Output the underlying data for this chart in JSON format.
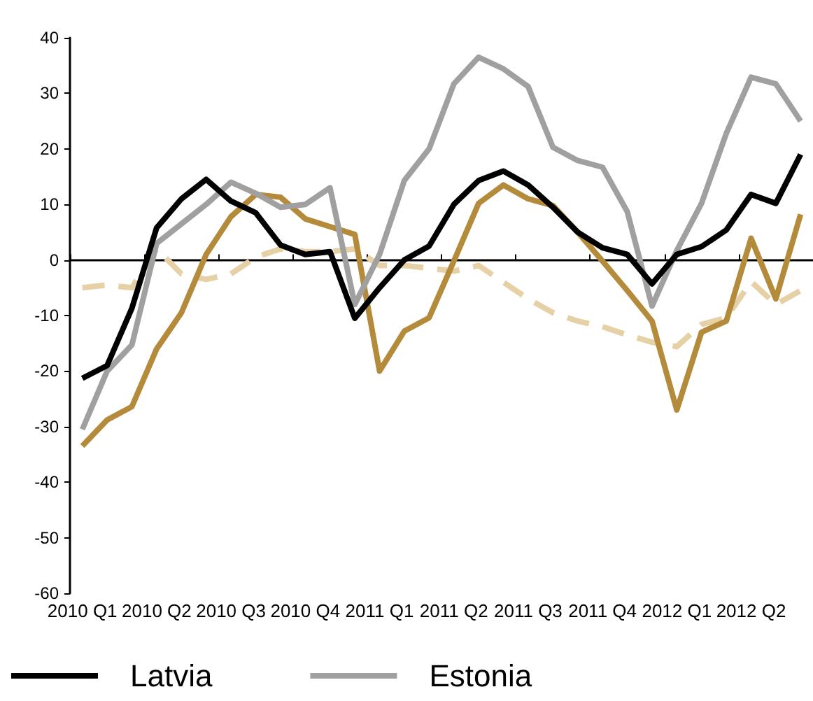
{
  "chart_data": {
    "type": "line",
    "categories": [
      "2010 Q1",
      null,
      null,
      "2010 Q2",
      null,
      null,
      "2010 Q3",
      null,
      null,
      "2010 Q4",
      null,
      null,
      "2011 Q1",
      null,
      null,
      "2011 Q2",
      null,
      null,
      "2011 Q3",
      null,
      null,
      "2011 Q4",
      null,
      null,
      "2012 Q1",
      null,
      null,
      "2012 Q2",
      null,
      null
    ],
    "series": [
      {
        "name": "Latvia",
        "color": "#000000",
        "line_style": "solid",
        "values": [
          -21.3,
          -19,
          -8.7,
          5.8,
          11,
          14.5,
          10.6,
          8.5,
          2.7,
          1,
          1.5,
          -10.5,
          -5,
          0,
          2.5,
          10,
          14.3,
          16,
          13.5,
          9.5,
          5,
          2.2,
          1,
          -4.3,
          1,
          2.4,
          5.4,
          11.8,
          10.2,
          19
        ]
      },
      {
        "name": "Estonia",
        "color": "#a0a0a0",
        "line_style": "solid",
        "values": [
          -30.5,
          -20,
          -15.3,
          3,
          6.5,
          10,
          14,
          12,
          9.5,
          10,
          13,
          -8,
          1,
          14.3,
          20,
          31.7,
          36.5,
          34.4,
          31.2,
          20.3,
          17.9,
          16.7,
          8.7,
          -8.3,
          1.7,
          10.2,
          22.8,
          32.9,
          31.7,
          25
        ]
      },
      {
        "color": "#b38b3b",
        "line_style": "solid",
        "values": [
          -33.5,
          -28.8,
          -26.4,
          -16,
          -9.5,
          1,
          7.8,
          11.8,
          11.3,
          7.4,
          6,
          4.6,
          -20,
          -12.8,
          -10.4,
          -0.2,
          10.2,
          13.5,
          11,
          9.8,
          5,
          -0.2,
          -5.5,
          -11,
          -27,
          -13,
          -11,
          3.9,
          -7,
          8.2
        ]
      },
      {
        "color": "#e6d0a5",
        "line_style": "dashed",
        "values": [
          -5,
          -4.5,
          -5,
          2,
          -2.5,
          -3.5,
          -2.5,
          0.5,
          2,
          1.5,
          1.5,
          2,
          -1,
          -1,
          -1.5,
          -2,
          -1,
          -4,
          -7,
          -9.5,
          -11,
          -12,
          -13.5,
          -14.8,
          -15.6,
          -11.6,
          -10.4,
          -3.9,
          -8,
          -5.5
        ]
      }
    ],
    "ylim": [
      -60,
      40
    ],
    "yticks": [
      -60,
      -50,
      -40,
      -30,
      -20,
      -10,
      0,
      10,
      20,
      30,
      40
    ],
    "legend": "bottom left",
    "marker": "none"
  }
}
